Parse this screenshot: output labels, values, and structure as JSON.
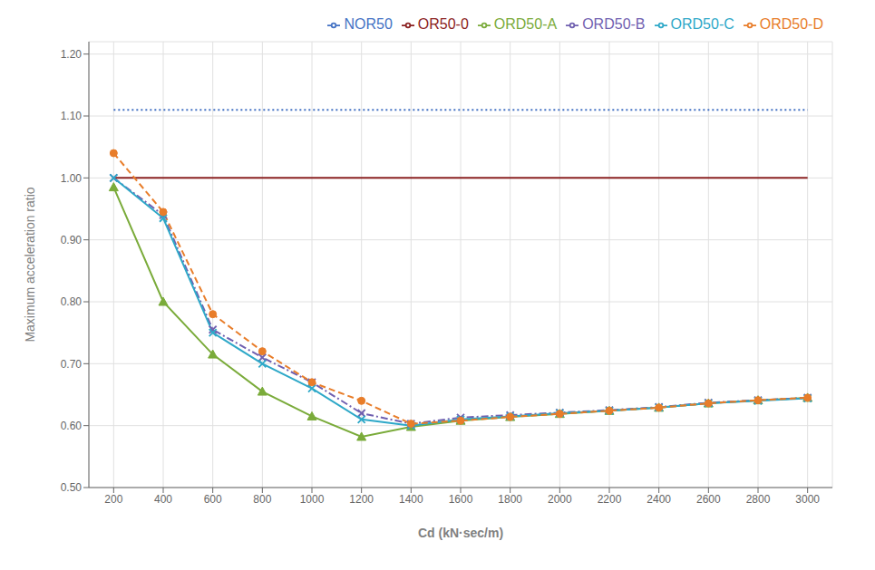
{
  "chart_data": {
    "type": "line",
    "x": [
      200,
      400,
      600,
      800,
      1000,
      1200,
      1400,
      1600,
      1800,
      2000,
      2200,
      2400,
      2600,
      2800,
      3000
    ],
    "series": [
      {
        "name": "NOR50",
        "color": "#4472C4",
        "line_style": "dotted",
        "marker": "none",
        "values": [
          1.11,
          1.11,
          1.11,
          1.11,
          1.11,
          1.11,
          1.11,
          1.11,
          1.11,
          1.11,
          1.11,
          1.11,
          1.11,
          1.11,
          1.11
        ]
      },
      {
        "name": "OR50-0",
        "color": "#8B2222",
        "line_style": "solid",
        "marker": "none",
        "values": [
          1.0,
          1.0,
          1.0,
          1.0,
          1.0,
          1.0,
          1.0,
          1.0,
          1.0,
          1.0,
          1.0,
          1.0,
          1.0,
          1.0,
          1.0
        ]
      },
      {
        "name": "ORD50-A",
        "color": "#7AAB3A",
        "line_style": "solid",
        "marker": "triangle",
        "values": [
          0.985,
          0.8,
          0.715,
          0.655,
          0.615,
          0.582,
          0.598,
          0.608,
          0.614,
          0.619,
          0.624,
          0.629,
          0.636,
          0.641,
          0.645
        ]
      },
      {
        "name": "ORD50-B",
        "color": "#7060B0",
        "line_style": "dashdot",
        "marker": "x",
        "values": [
          1.0,
          0.94,
          0.755,
          0.71,
          0.67,
          0.62,
          0.603,
          0.613,
          0.617,
          0.621,
          0.625,
          0.63,
          0.637,
          0.641,
          0.645
        ]
      },
      {
        "name": "ORD50-C",
        "color": "#2EA8C8",
        "line_style": "solid",
        "marker": "x",
        "values": [
          1.0,
          0.935,
          0.75,
          0.7,
          0.66,
          0.61,
          0.6,
          0.61,
          0.615,
          0.62,
          0.624,
          0.629,
          0.636,
          0.64,
          0.644
        ]
      },
      {
        "name": "ORD50-D",
        "color": "#E87D2A",
        "line_style": "dashed",
        "marker": "circle",
        "values": [
          1.04,
          0.945,
          0.78,
          0.72,
          0.67,
          0.64,
          0.603,
          0.608,
          0.614,
          0.619,
          0.624,
          0.629,
          0.636,
          0.641,
          0.645
        ]
      }
    ],
    "xlim": [
      100,
      3100
    ],
    "ylim": [
      0.5,
      1.22
    ],
    "xticks": [
      200,
      400,
      600,
      800,
      1000,
      1200,
      1400,
      1600,
      1800,
      2000,
      2200,
      2400,
      2600,
      2800,
      3000
    ],
    "yticks": [
      {
        "value": 0.5,
        "label": "0.50"
      },
      {
        "value": 0.6,
        "label": "0.60"
      },
      {
        "value": 0.7,
        "label": "0.70"
      },
      {
        "value": 0.8,
        "label": "0.80"
      },
      {
        "value": 0.9,
        "label": "0.90"
      },
      {
        "value": 1.0,
        "label": "1.00"
      },
      {
        "value": 1.1,
        "label": "1.10"
      },
      {
        "value": 1.2,
        "label": "1.20"
      }
    ],
    "xlabel": "Cd (kN·sec/m)",
    "ylabel": "Maximum acceleration ratio",
    "grid": true,
    "legend": "upper right"
  }
}
